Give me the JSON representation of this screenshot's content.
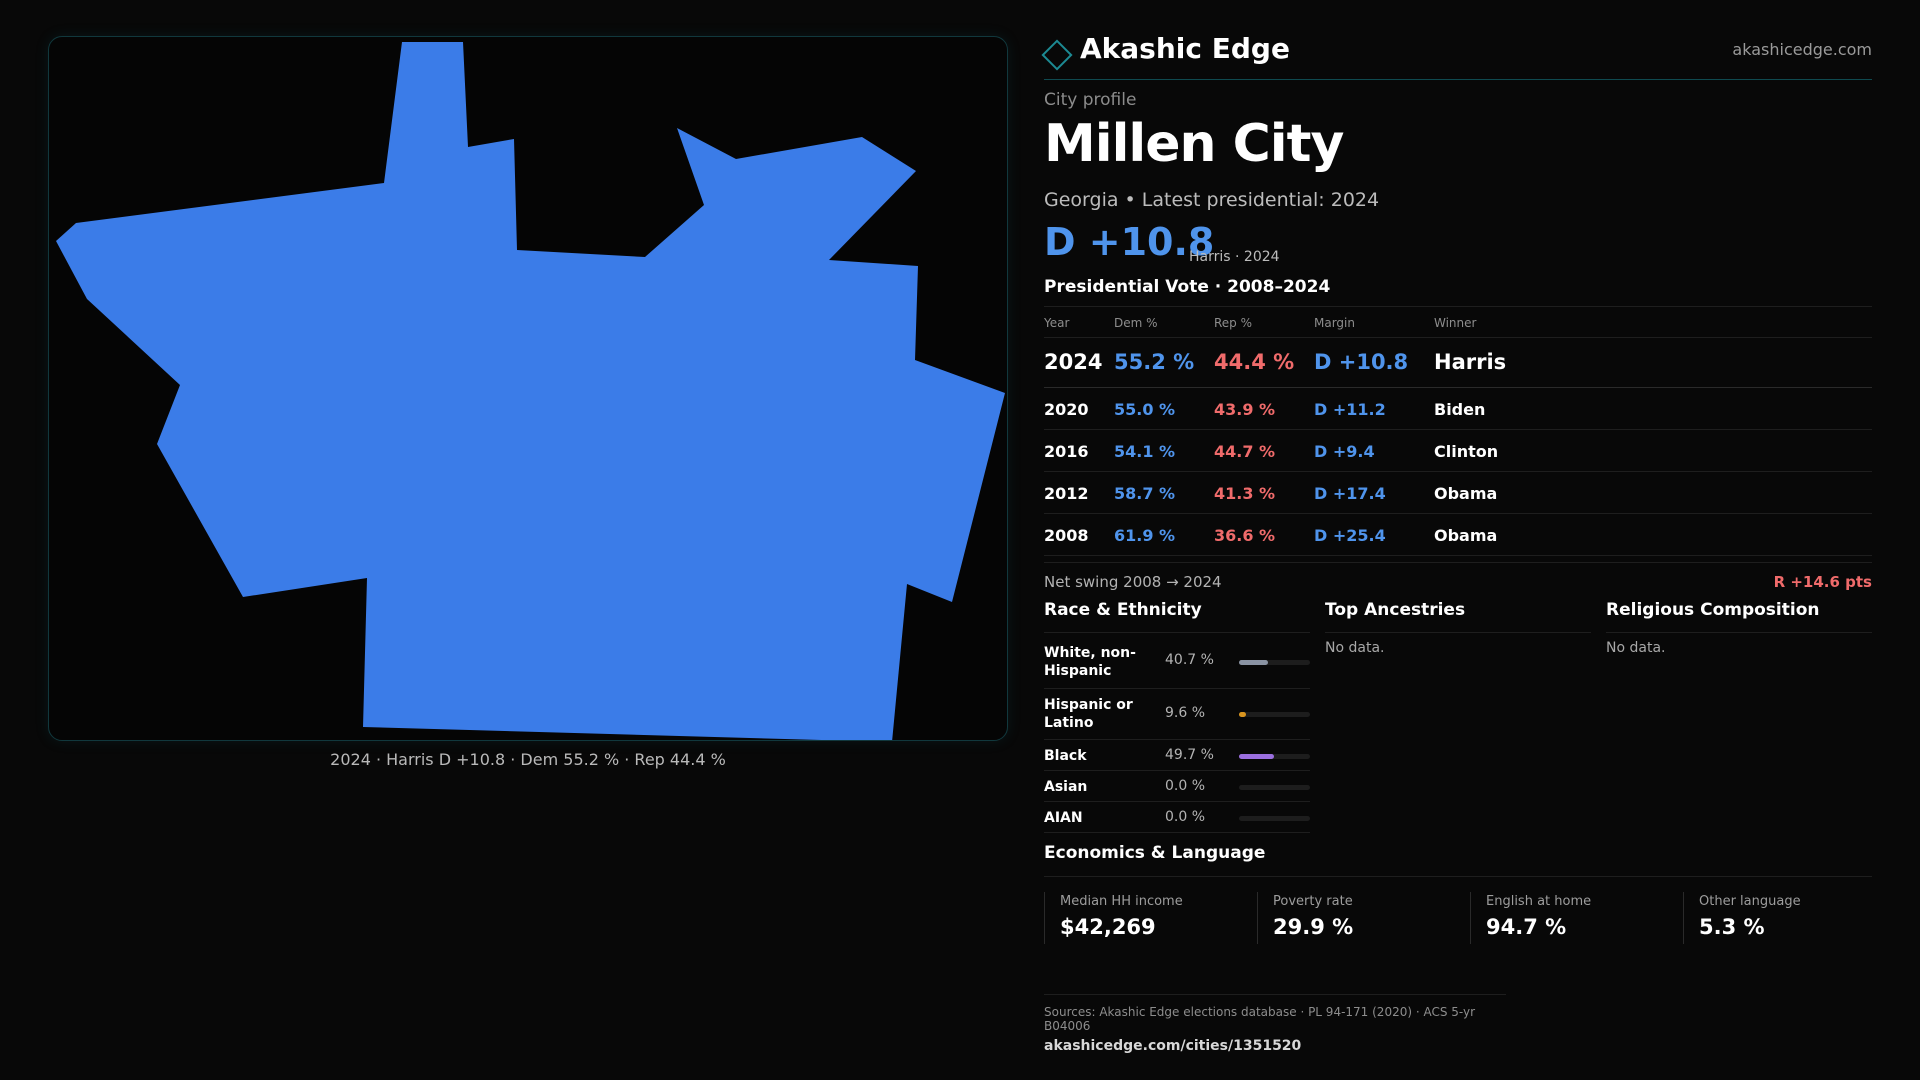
{
  "colors": {
    "dem": "#4f94ec",
    "rep": "#f06b6b",
    "map_fill": "#3b7ce8",
    "accent": "#1c8a93"
  },
  "map": {
    "caption": "2024 · Harris D +10.8 · Dem 55.2 % · Rep 44.4 %"
  },
  "brand": {
    "name": "Akashic Edge",
    "url": "akashicedge.com",
    "logo_icon": "diamond-icon"
  },
  "profile": {
    "kicker": "City profile",
    "title": "Millen City",
    "subtitle": "Georgia • Latest presidential: 2024",
    "headline_margin": "D +10.8",
    "headline_sub": "Harris · 2024"
  },
  "vote": {
    "title": "Presidential Vote · 2008–2024",
    "headers": {
      "year": "Year",
      "dem": "Dem %",
      "rep": "Rep %",
      "margin": "Margin",
      "winner": "Winner"
    },
    "rows": [
      {
        "year": "2024",
        "dem": "55.2 %",
        "rep": "44.4 %",
        "margin": "D +10.8",
        "winner": "Harris"
      },
      {
        "year": "2020",
        "dem": "55.0 %",
        "rep": "43.9 %",
        "margin": "D +11.2",
        "winner": "Biden"
      },
      {
        "year": "2016",
        "dem": "54.1 %",
        "rep": "44.7 %",
        "margin": "D +9.4",
        "winner": "Clinton"
      },
      {
        "year": "2012",
        "dem": "58.7 %",
        "rep": "41.3 %",
        "margin": "D +17.4",
        "winner": "Obama"
      },
      {
        "year": "2008",
        "dem": "61.9 %",
        "rep": "36.6 %",
        "margin": "D +25.4",
        "winner": "Obama"
      }
    ],
    "swing_label": "Net swing 2008 → 2024",
    "swing_value": "R +14.6 pts"
  },
  "race": {
    "title": "Race & Ethnicity",
    "rows": [
      {
        "label": "White, non-Hispanic",
        "pct": "40.7 %",
        "share": 0.407,
        "color": "#8a93a3"
      },
      {
        "label": "Hispanic or Latino",
        "pct": "9.6 %",
        "share": 0.096,
        "color": "#d9951f"
      },
      {
        "label": "Black",
        "pct": "49.7 %",
        "share": 0.497,
        "color": "#9b6fe0"
      },
      {
        "label": "Asian",
        "pct": "0.0 %",
        "share": 0.0,
        "color": "#4f94ec"
      },
      {
        "label": "AIAN",
        "pct": "0.0 %",
        "share": 0.0,
        "color": "#4f94ec"
      }
    ]
  },
  "ancestries": {
    "title": "Top Ancestries",
    "empty": "No data."
  },
  "religion": {
    "title": "Religious Composition",
    "empty": "No data."
  },
  "economics": {
    "title": "Economics & Language",
    "cards": [
      {
        "label": "Median HH income",
        "value": "$42,269"
      },
      {
        "label": "Poverty rate",
        "value": "29.9 %"
      },
      {
        "label": "English at home",
        "value": "94.7 %"
      },
      {
        "label": "Other language",
        "value": "5.3 %"
      }
    ]
  },
  "sources": {
    "line": "Sources: Akashic Edge elections database · PL 94-171 (2020) · ACS 5-yr B04006",
    "url": "akashicedge.com/cities/1351520"
  }
}
